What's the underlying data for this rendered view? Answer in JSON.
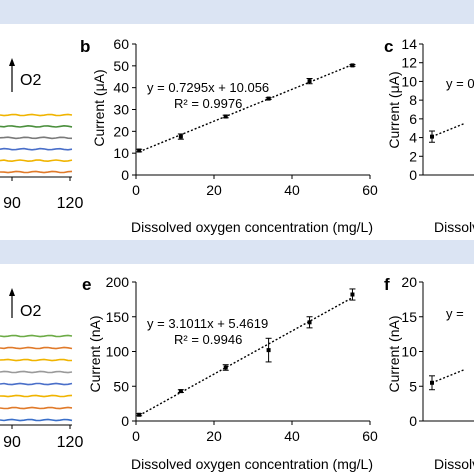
{
  "figure": {
    "band_color": "#dbe4f3",
    "panel_letters": {
      "b": "b",
      "c": "c",
      "e": "e",
      "f": "f"
    }
  },
  "left_strips": {
    "top": {
      "o2_label": "O2",
      "x_ticks": [
        "90",
        "120"
      ],
      "trace_colors": [
        "#f0b400",
        "#4a8f3c",
        "#7a7a7a",
        "#4a6fc9",
        "#f0b400",
        "#e07a2a"
      ]
    },
    "bottom": {
      "o2_label": "O2",
      "x_ticks": [
        "90",
        "120"
      ],
      "trace_colors": [
        "#6cab46",
        "#e07a2a",
        "#f0b400",
        "#9a9a9a",
        "#4a6fc9",
        "#f0b400",
        "#e07a2a",
        "#3a6fc9"
      ]
    }
  },
  "right_stubs": {
    "c": {
      "ylabel": "Current (μA)",
      "y_ticks": [
        "0",
        "2",
        "4",
        "6",
        "8",
        "10",
        "12",
        "14"
      ],
      "equation": "y = 0",
      "xlabel": "Dissolv",
      "point": {
        "x": 0,
        "y": 4.1,
        "err": 0.6
      }
    },
    "f": {
      "ylabel": "Current (nA)",
      "y_ticks": [
        "0",
        "5",
        "10",
        "15",
        "20"
      ],
      "equation": "y =",
      "xlabel": "Dissolv",
      "point": {
        "x": 0,
        "y": 5.5,
        "err": 1.0
      }
    }
  },
  "chart_data": [
    {
      "panel": "b",
      "type": "scatter",
      "xlabel": "Dissolved oxygen concentration (mg/L)",
      "ylabel": "Current (μA)",
      "xlim": [
        0,
        60
      ],
      "ylim": [
        0,
        60
      ],
      "x_ticks": [
        0,
        20,
        40,
        60
      ],
      "y_ticks": [
        0,
        10,
        20,
        30,
        40,
        50,
        60
      ],
      "x": [
        0.8,
        11.5,
        23,
        34,
        44.5,
        55.5
      ],
      "y": [
        11.2,
        17.6,
        26.8,
        35.0,
        43.0,
        50.2
      ],
      "yerr": [
        0.6,
        1.2,
        0.6,
        0.4,
        1.2,
        0.4
      ],
      "equation": "y = 0.7295x + 10.056",
      "r2": "R² = 0.9976",
      "trendline": {
        "slope": 0.7295,
        "intercept": 10.056
      }
    },
    {
      "panel": "e",
      "type": "scatter",
      "xlabel": "Dissolved oxygen concentration (mg/L)",
      "ylabel": "Current (nA)",
      "xlim": [
        0,
        60
      ],
      "ylim": [
        0,
        200
      ],
      "x_ticks": [
        0,
        20,
        40,
        60
      ],
      "y_ticks": [
        0,
        50,
        100,
        150,
        200
      ],
      "x": [
        0.8,
        11.5,
        23,
        34,
        44.5,
        55.5
      ],
      "y": [
        9,
        43,
        77,
        102,
        142,
        182
      ],
      "yerr": [
        1.5,
        2,
        4,
        17,
        8,
        8
      ],
      "equation": "y = 3.1011x + 5.4619",
      "r2": "R² = 0.9946",
      "trendline": {
        "slope": 3.1011,
        "intercept": 5.4619
      }
    }
  ]
}
